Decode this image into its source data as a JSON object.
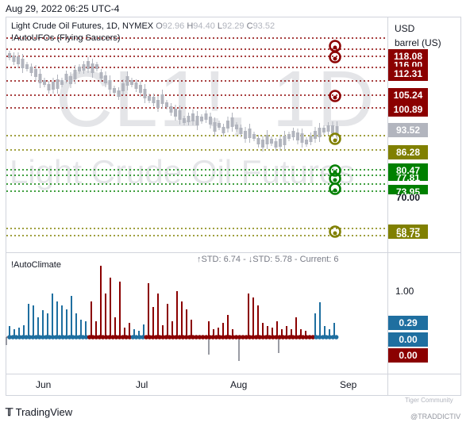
{
  "header": {
    "timestamp": "Aug 29, 2022 06:25 UTC-4",
    "symbol_line": "Light Crude Oil Futures, 1D, NYMEX",
    "ohlc": {
      "O": "92.96",
      "H": "94.40",
      "L": "92.29",
      "C": "93.52"
    },
    "indicator1": "!AutoUFOs (Flying Saucers)"
  },
  "watermark": {
    "symbol": "CL1!, 1D",
    "name": "Light Crude Oil Futures"
  },
  "price_axis": {
    "unit_line1": "USD",
    "unit_line2": "barrel (US)",
    "tags": [
      {
        "label": "118.08",
        "color": "#8b0000"
      },
      {
        "label": "116.00",
        "color": "#8b0000"
      },
      {
        "label": "112.31",
        "color": "#8b0000"
      },
      {
        "label": "105.24",
        "color": "#8b0000"
      },
      {
        "label": "100.89",
        "color": "#8b0000"
      },
      {
        "label": "93.52",
        "color": "#b2b5be"
      },
      {
        "label": "86.28",
        "color": "#808000"
      },
      {
        "label": "80.47",
        "color": "#008000"
      },
      {
        "label": "77.81",
        "color": "#008000"
      },
      {
        "label": "73.95",
        "color": "#008000"
      },
      {
        "label": "70.00",
        "color": "#ffffff"
      },
      {
        "label": "60.77",
        "color": "#808000"
      },
      {
        "label": "58.75",
        "color": "#808000"
      }
    ]
  },
  "indicator2": {
    "title": "!AutoClimate",
    "std_text": "↑STD: 6.74 - ↓STD: 5.78 - Current: 6",
    "axis_top": "1.00",
    "tags": [
      {
        "label": "0.29",
        "color": "#1f6fa0"
      },
      {
        "label": "0.00",
        "color": "#1f6fa0"
      },
      {
        "label": "0.00",
        "color": "#8b0000"
      }
    ]
  },
  "x_axis": {
    "labels": [
      "Jun",
      "Jul",
      "Aug",
      "Sep"
    ]
  },
  "footer": {
    "logo": "TradingView",
    "tiger": "Tiger Community",
    "tradd": "@TRADDICTIV"
  },
  "colors": {
    "red": "#8b0000",
    "green": "#008000",
    "olive": "#808000",
    "blue": "#1f6fa0",
    "candle": "#b2b5be"
  }
}
